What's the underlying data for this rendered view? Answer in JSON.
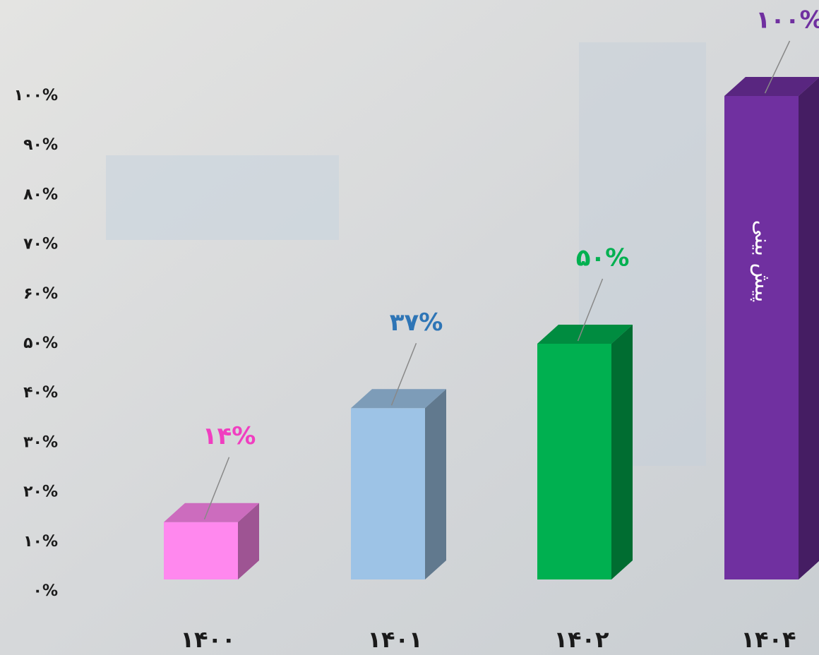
{
  "chart_data": {
    "type": "bar3d",
    "categories": [
      "۱۴۰۰",
      "۱۴۰۱",
      "۱۴۰۲",
      "۱۴۰۴"
    ],
    "values": [
      14,
      37,
      50,
      100
    ],
    "value_labels": [
      "۱۴%",
      "۳۷%",
      "۵۰%",
      "۱۰۰%"
    ],
    "colors": [
      "#ff88ee",
      "#9dc3e6",
      "#00b050",
      "#7030a0"
    ],
    "label_colors": [
      "#f03ec0",
      "#2e75b6",
      "#00b050",
      "#7030a0"
    ],
    "annotation": "پیش بینی",
    "ylim": [
      0,
      100
    ],
    "yticks": [
      {
        "value": 0,
        "label": "۰%"
      },
      {
        "value": 10,
        "label": "۱۰%"
      },
      {
        "value": 20,
        "label": "۲۰%"
      },
      {
        "value": 30,
        "label": "۳۰%"
      },
      {
        "value": 40,
        "label": "۴۰%"
      },
      {
        "value": 50,
        "label": "۵۰%"
      },
      {
        "value": 60,
        "label": "۶۰%"
      },
      {
        "value": 70,
        "label": "۷۰%"
      },
      {
        "value": 80,
        "label": "۸۰%"
      },
      {
        "value": 90,
        "label": "۹۰%"
      },
      {
        "value": 100,
        "label": "۱۰۰%"
      }
    ],
    "grid": false
  }
}
